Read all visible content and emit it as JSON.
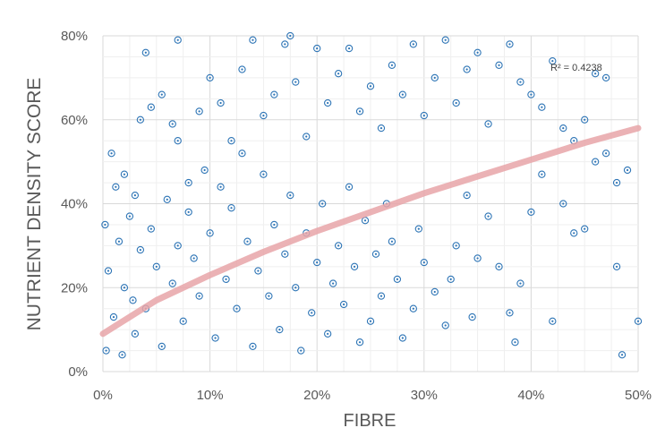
{
  "chart_data": {
    "type": "scatter",
    "xlabel": "FIBRE",
    "ylabel": "NUTRIENT DENSITY SCORE",
    "xlim": [
      0,
      0.5
    ],
    "ylim": [
      0,
      0.8
    ],
    "x_ticks": [
      "0%",
      "10%",
      "20%",
      "30%",
      "40%",
      "50%"
    ],
    "y_ticks": [
      "0%",
      "20%",
      "40%",
      "60%",
      "80%"
    ],
    "grid": true,
    "marker": "circled-dot",
    "point_color": "#2e75b6",
    "trendline": {
      "type": "power",
      "label": "R² = 0.4238",
      "r_squared": 0.4238,
      "color": "#e8a4a8",
      "points": [
        [
          0.0,
          0.09
        ],
        [
          0.05,
          0.17
        ],
        [
          0.1,
          0.23
        ],
        [
          0.15,
          0.285
        ],
        [
          0.2,
          0.335
        ],
        [
          0.25,
          0.38
        ],
        [
          0.3,
          0.425
        ],
        [
          0.35,
          0.465
        ],
        [
          0.4,
          0.505
        ],
        [
          0.45,
          0.545
        ],
        [
          0.5,
          0.58
        ]
      ]
    },
    "series": [
      {
        "points": [
          [
            0.008,
            0.52
          ],
          [
            0.012,
            0.44
          ],
          [
            0.02,
            0.47
          ],
          [
            0.03,
            0.42
          ],
          [
            0.035,
            0.6
          ],
          [
            0.045,
            0.63
          ],
          [
            0.055,
            0.66
          ],
          [
            0.04,
            0.76
          ],
          [
            0.065,
            0.59
          ],
          [
            0.07,
            0.55
          ],
          [
            0.07,
            0.79
          ],
          [
            0.08,
            0.45
          ],
          [
            0.09,
            0.62
          ],
          [
            0.1,
            0.7
          ],
          [
            0.11,
            0.64
          ],
          [
            0.12,
            0.55
          ],
          [
            0.13,
            0.72
          ],
          [
            0.14,
            0.79
          ],
          [
            0.15,
            0.61
          ],
          [
            0.16,
            0.66
          ],
          [
            0.17,
            0.78
          ],
          [
            0.175,
            0.8
          ],
          [
            0.18,
            0.69
          ],
          [
            0.19,
            0.56
          ],
          [
            0.2,
            0.77
          ],
          [
            0.21,
            0.64
          ],
          [
            0.22,
            0.71
          ],
          [
            0.23,
            0.77
          ],
          [
            0.24,
            0.62
          ],
          [
            0.25,
            0.68
          ],
          [
            0.26,
            0.58
          ],
          [
            0.27,
            0.73
          ],
          [
            0.28,
            0.66
          ],
          [
            0.29,
            0.78
          ],
          [
            0.3,
            0.61
          ],
          [
            0.31,
            0.7
          ],
          [
            0.32,
            0.79
          ],
          [
            0.33,
            0.64
          ],
          [
            0.34,
            0.72
          ],
          [
            0.35,
            0.76
          ],
          [
            0.36,
            0.59
          ],
          [
            0.37,
            0.73
          ],
          [
            0.38,
            0.78
          ],
          [
            0.39,
            0.69
          ],
          [
            0.4,
            0.66
          ],
          [
            0.41,
            0.63
          ],
          [
            0.42,
            0.74
          ],
          [
            0.43,
            0.58
          ],
          [
            0.44,
            0.55
          ],
          [
            0.45,
            0.6
          ],
          [
            0.46,
            0.71
          ],
          [
            0.47,
            0.7
          ],
          [
            0.48,
            0.45
          ],
          [
            0.49,
            0.48
          ],
          [
            0.5,
            0.12
          ],
          [
            0.485,
            0.04
          ],
          [
            0.48,
            0.25
          ],
          [
            0.47,
            0.52
          ],
          [
            0.46,
            0.5
          ],
          [
            0.45,
            0.34
          ],
          [
            0.44,
            0.33
          ],
          [
            0.43,
            0.4
          ],
          [
            0.42,
            0.12
          ],
          [
            0.41,
            0.47
          ],
          [
            0.4,
            0.38
          ],
          [
            0.39,
            0.21
          ],
          [
            0.385,
            0.07
          ],
          [
            0.38,
            0.14
          ],
          [
            0.37,
            0.25
          ],
          [
            0.36,
            0.37
          ],
          [
            0.35,
            0.27
          ],
          [
            0.345,
            0.13
          ],
          [
            0.34,
            0.42
          ],
          [
            0.33,
            0.3
          ],
          [
            0.325,
            0.22
          ],
          [
            0.32,
            0.11
          ],
          [
            0.31,
            0.19
          ],
          [
            0.3,
            0.26
          ],
          [
            0.295,
            0.34
          ],
          [
            0.29,
            0.15
          ],
          [
            0.28,
            0.08
          ],
          [
            0.275,
            0.22
          ],
          [
            0.27,
            0.31
          ],
          [
            0.265,
            0.4
          ],
          [
            0.26,
            0.18
          ],
          [
            0.255,
            0.28
          ],
          [
            0.25,
            0.12
          ],
          [
            0.245,
            0.36
          ],
          [
            0.24,
            0.07
          ],
          [
            0.235,
            0.25
          ],
          [
            0.23,
            0.44
          ],
          [
            0.225,
            0.16
          ],
          [
            0.22,
            0.3
          ],
          [
            0.215,
            0.21
          ],
          [
            0.21,
            0.09
          ],
          [
            0.205,
            0.4
          ],
          [
            0.2,
            0.26
          ],
          [
            0.195,
            0.14
          ],
          [
            0.19,
            0.33
          ],
          [
            0.185,
            0.05
          ],
          [
            0.18,
            0.2
          ],
          [
            0.175,
            0.42
          ],
          [
            0.17,
            0.28
          ],
          [
            0.165,
            0.1
          ],
          [
            0.16,
            0.35
          ],
          [
            0.155,
            0.18
          ],
          [
            0.15,
            0.47
          ],
          [
            0.145,
            0.24
          ],
          [
            0.14,
            0.06
          ],
          [
            0.135,
            0.31
          ],
          [
            0.13,
            0.52
          ],
          [
            0.125,
            0.15
          ],
          [
            0.12,
            0.39
          ],
          [
            0.115,
            0.22
          ],
          [
            0.11,
            0.44
          ],
          [
            0.105,
            0.08
          ],
          [
            0.1,
            0.33
          ],
          [
            0.095,
            0.48
          ],
          [
            0.09,
            0.18
          ],
          [
            0.085,
            0.27
          ],
          [
            0.08,
            0.38
          ],
          [
            0.075,
            0.12
          ],
          [
            0.07,
            0.3
          ],
          [
            0.065,
            0.21
          ],
          [
            0.06,
            0.41
          ],
          [
            0.055,
            0.06
          ],
          [
            0.05,
            0.25
          ],
          [
            0.045,
            0.34
          ],
          [
            0.04,
            0.15
          ],
          [
            0.035,
            0.29
          ],
          [
            0.03,
            0.09
          ],
          [
            0.025,
            0.37
          ],
          [
            0.02,
            0.2
          ],
          [
            0.015,
            0.31
          ],
          [
            0.01,
            0.13
          ],
          [
            0.005,
            0.24
          ],
          [
            0.003,
            0.05
          ],
          [
            0.002,
            0.35
          ],
          [
            0.018,
            0.04
          ],
          [
            0.028,
            0.17
          ]
        ]
      }
    ]
  }
}
